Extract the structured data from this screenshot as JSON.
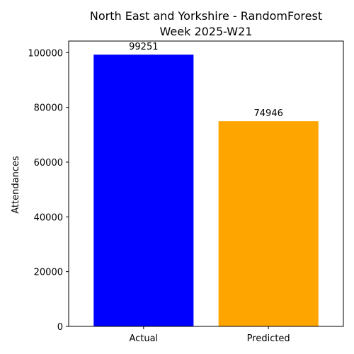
{
  "chart_data": {
    "type": "bar",
    "title_line1": "North East and Yorkshire - RandomForest",
    "title_line2": "Week 2025-W21",
    "xlabel": "",
    "ylabel": "Attendances",
    "categories": [
      "Actual",
      "Predicted"
    ],
    "values": [
      99251,
      74946
    ],
    "colors": [
      "#0000ff",
      "#ffa500"
    ],
    "ylim": [
      0,
      104213
    ],
    "yticks": [
      0,
      20000,
      40000,
      60000,
      80000,
      100000
    ],
    "grid": false
  }
}
